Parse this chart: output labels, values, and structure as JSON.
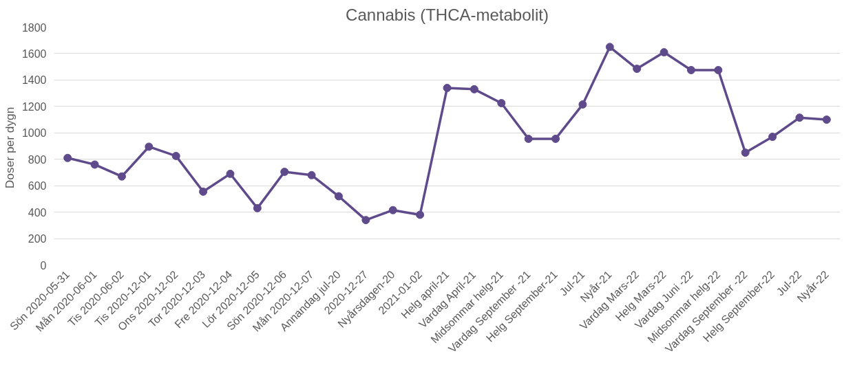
{
  "chart_data": {
    "type": "line",
    "title": "Cannabis (THCA-metabolit)",
    "ylabel": "Doser per  dygn",
    "categories": [
      "Sön 2020-05-31",
      "Mån 2020-06-01",
      "Tis 2020-06-02",
      "Tis 2020-12-01",
      "Ons 2020-12-02",
      "Tor 2020-12-03",
      "Fre 2020-12-04",
      "Lör 2020-12-05",
      "Sön 2020-12-06",
      "Mån 2020-12-07",
      "Annandag jul-20",
      "2020-12-27",
      "Nyårsdagen-20",
      "2021-01-02",
      "Helg april-21",
      "Vardag April-21",
      "Midsommar helg-21",
      "Vardag September -21",
      "Helg September-21",
      "Jul-21",
      "Nyår-21",
      "Vardag Mars-22",
      "Helg Mars-22",
      "Vardag Juni -22",
      "Midsommar helg-22",
      "Vardag September -22",
      "Helg September-22",
      "Jul-22",
      "Nyår-22"
    ],
    "series": [
      {
        "color": "#5f4b8b",
        "values": [
          810,
          760,
          670,
          895,
          825,
          555,
          690,
          430,
          705,
          680,
          520,
          340,
          415,
          380,
          1340,
          1330,
          1225,
          955,
          955,
          1215,
          1650,
          1485,
          1610,
          1475,
          1475,
          850,
          970,
          1115,
          1100
        ]
      }
    ],
    "ylim": [
      0,
      1800
    ],
    "yticks": [
      0,
      200,
      400,
      600,
      800,
      1000,
      1200,
      1400,
      1600,
      1800
    ],
    "grid": "y",
    "marker": "circle",
    "line_style": "solid"
  }
}
